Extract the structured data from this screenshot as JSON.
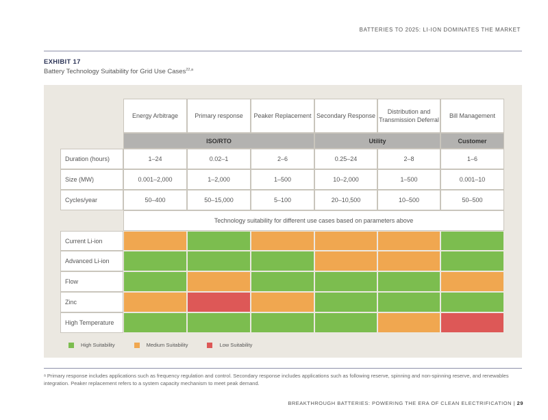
{
  "header": {
    "running_title": "BATTERIES TO 2025: LI-ION DOMINATES THE MARKET"
  },
  "exhibit": {
    "label": "EXHIBIT 17",
    "title": "Battery Technology Suitability for Grid Use Cases",
    "title_sup": "22,a"
  },
  "table": {
    "use_cases": [
      "Energy Arbitrage",
      "Primary response",
      "Peaker Replacement",
      "Secondary Response",
      "Distribution and Transmission Deferral",
      "Bill Management"
    ],
    "groups": [
      "ISO/RTO",
      "Utility",
      "Customer"
    ],
    "parameters": [
      {
        "label": "Duration (hours)",
        "values": [
          "1–24",
          "0.02–1",
          "2–6",
          "0.25–24",
          "2–8",
          "1–6"
        ]
      },
      {
        "label": "Size (MW)",
        "values": [
          "0.001–2,000",
          "1–2,000",
          "1–500",
          "10–2,000",
          "1–500",
          "0.001–10"
        ]
      },
      {
        "label": "Cycles/year",
        "values": [
          "50–400",
          "50–15,000",
          "5–100",
          "20–10,500",
          "10–500",
          "50–500"
        ]
      }
    ],
    "suitability_note": "Technology suitability for different use cases based on parameters above",
    "technologies": [
      {
        "label": "Current Li-ion",
        "ratings": [
          "medium",
          "high",
          "medium",
          "medium",
          "medium",
          "high"
        ]
      },
      {
        "label": "Advanced Li-ion",
        "ratings": [
          "high",
          "high",
          "high",
          "medium",
          "medium",
          "high"
        ]
      },
      {
        "label": "Flow",
        "ratings": [
          "high",
          "medium",
          "high",
          "high",
          "high",
          "medium"
        ]
      },
      {
        "label": "Zinc",
        "ratings": [
          "medium",
          "low",
          "medium",
          "high",
          "high",
          "high"
        ]
      },
      {
        "label": "High Temperature",
        "ratings": [
          "high",
          "high",
          "high",
          "high",
          "medium",
          "low"
        ]
      }
    ]
  },
  "legend": {
    "high": "High Suitability",
    "medium": "Medium Suitability",
    "low": "Low Suitability"
  },
  "colors": {
    "high": "#7cbd4f",
    "medium": "#f0a750",
    "low": "#dd5857",
    "group_header": "#b3b2b0"
  },
  "footnote": "ᵃ Primary response includes applications such as frequency regulation and control. Secondary response includes applications such as following reserve, spinning and non-spinning reserve, and renewables integration. Peaker replacement refers to a system capacity mechanism to meet peak demand.",
  "footer": {
    "publication": "BREAKTHROUGH BATTERIES: POWERING THE ERA OF CLEAN ELECTRIFICATION",
    "separator": " | ",
    "page": "29"
  }
}
